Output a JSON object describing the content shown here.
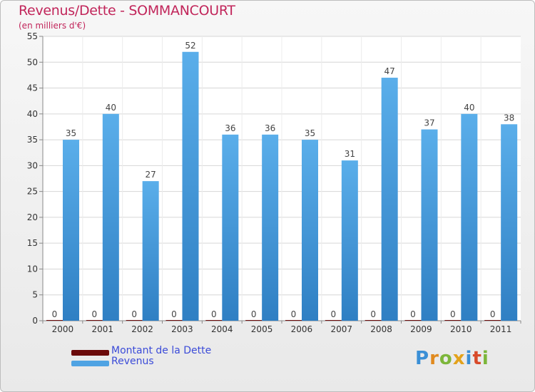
{
  "chart_data": {
    "type": "bar",
    "title": "Revenus/Dette - SOMMANCOURT",
    "subtitle": "(en milliers d'€)",
    "categories": [
      "2000",
      "2001",
      "2002",
      "2003",
      "2004",
      "2005",
      "2006",
      "2007",
      "2008",
      "2009",
      "2010",
      "2011"
    ],
    "series": [
      {
        "name": "Montant de la Dette",
        "values": [
          0,
          0,
          0,
          0,
          0,
          0,
          0,
          0,
          0,
          0,
          0,
          0
        ],
        "color": "#6b0a0a"
      },
      {
        "name": "Revenus",
        "values": [
          35,
          40,
          27,
          52,
          36,
          36,
          35,
          31,
          47,
          37,
          40,
          38
        ],
        "color": "#4fa3e3"
      }
    ],
    "ylim": [
      0,
      55
    ],
    "yticks": [
      0,
      5,
      10,
      15,
      20,
      25,
      30,
      35,
      40,
      45,
      50,
      55
    ],
    "grid": true,
    "legend_position": "bottom-left"
  },
  "logo": {
    "letters": [
      "P",
      "r",
      "o",
      "x",
      "i",
      "t",
      "i"
    ],
    "colors": [
      "#3a8fd6",
      "#e08a1e",
      "#7cb63a",
      "#e3a21c",
      "#3a8fd6",
      "#d84a2a",
      "#7cb63a"
    ]
  }
}
